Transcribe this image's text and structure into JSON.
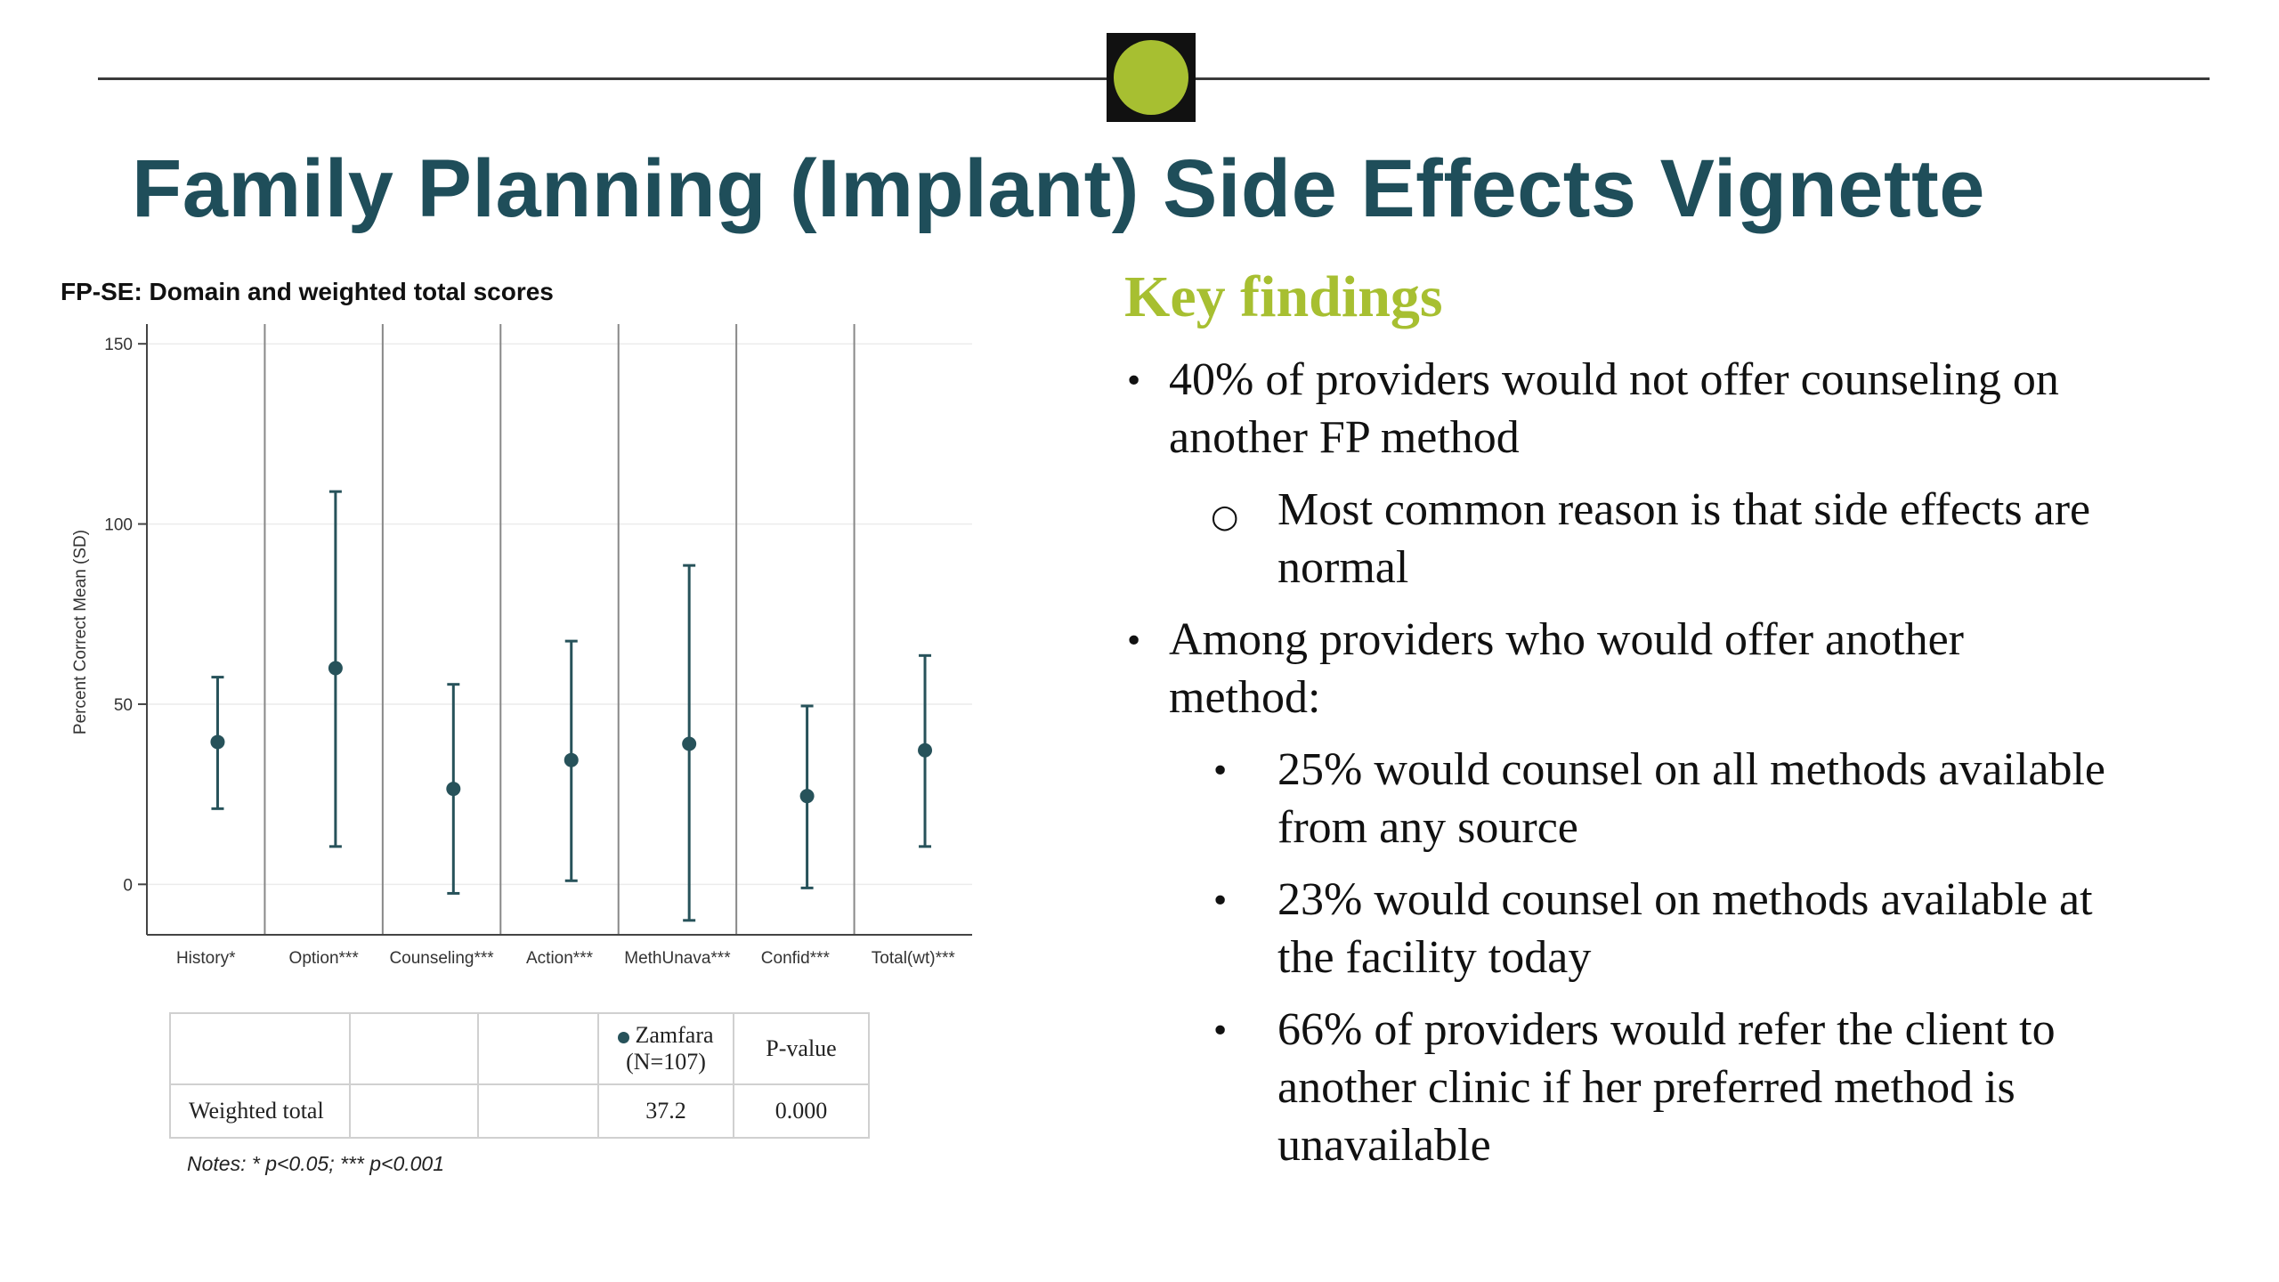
{
  "slide": {
    "title": "Family Planning (Implant) Side Effects Vignette"
  },
  "chart_title": "FP-SE: Domain and weighted total scores",
  "chart_data": {
    "type": "scatter",
    "title": "FP-SE: Domain and weighted total scores",
    "xlabel": "",
    "ylabel": "Percent Correct Mean (SD)",
    "ylim": [
      -14,
      154
    ],
    "yticks": [
      0,
      50,
      100,
      150
    ],
    "grid": true,
    "categories": [
      "History*",
      "Option***",
      "Counseling***",
      "Action***",
      "MethUnava***",
      "Confid***",
      "Total(wt)***"
    ],
    "series": [
      {
        "mean": [
          39.5,
          60,
          26.5,
          34.5,
          39,
          24.5,
          37.2
        ],
        "lower": [
          21,
          10.5,
          -2.5,
          1,
          -10,
          -1,
          10.5
        ],
        "upper": [
          57.5,
          109,
          55.5,
          67.5,
          88.5,
          49.5,
          63.5
        ]
      }
    ]
  },
  "table": {
    "header": [
      "",
      "",
      "",
      "Zamfara",
      "(N=107)",
      "P-value"
    ],
    "row": [
      "Weighted total",
      "",
      "",
      "37.2",
      "0.000"
    ]
  },
  "notes": "Notes: * p<0.05; *** p<0.001",
  "key_findings": {
    "heading": "Key findings",
    "items": [
      {
        "level": 1,
        "bullet": "•",
        "lines": [
          "40% of providers would not offer counseling on",
          "another FP method"
        ]
      },
      {
        "level": 2,
        "bullet": "○",
        "lines": [
          "Most common reason is that side effects are",
          "normal"
        ]
      },
      {
        "level": 1,
        "bullet": "•",
        "lines": [
          "Among providers who would offer another",
          "method:"
        ]
      },
      {
        "level": 2,
        "bullet": "•",
        "lines": [
          "25% would counsel on all methods available",
          "from any source"
        ]
      },
      {
        "level": 2,
        "bullet": "•",
        "lines": [
          "23% would counsel on methods available at",
          "the facility today"
        ]
      },
      {
        "level": 2,
        "bullet": "•",
        "lines": [
          "66% of providers would refer the client to",
          "another clinic if her preferred method is",
          "unavailable"
        ]
      }
    ]
  },
  "colors": {
    "title": "#1f4e5a",
    "accent": "#a7bf31",
    "marker": "#27525a"
  }
}
